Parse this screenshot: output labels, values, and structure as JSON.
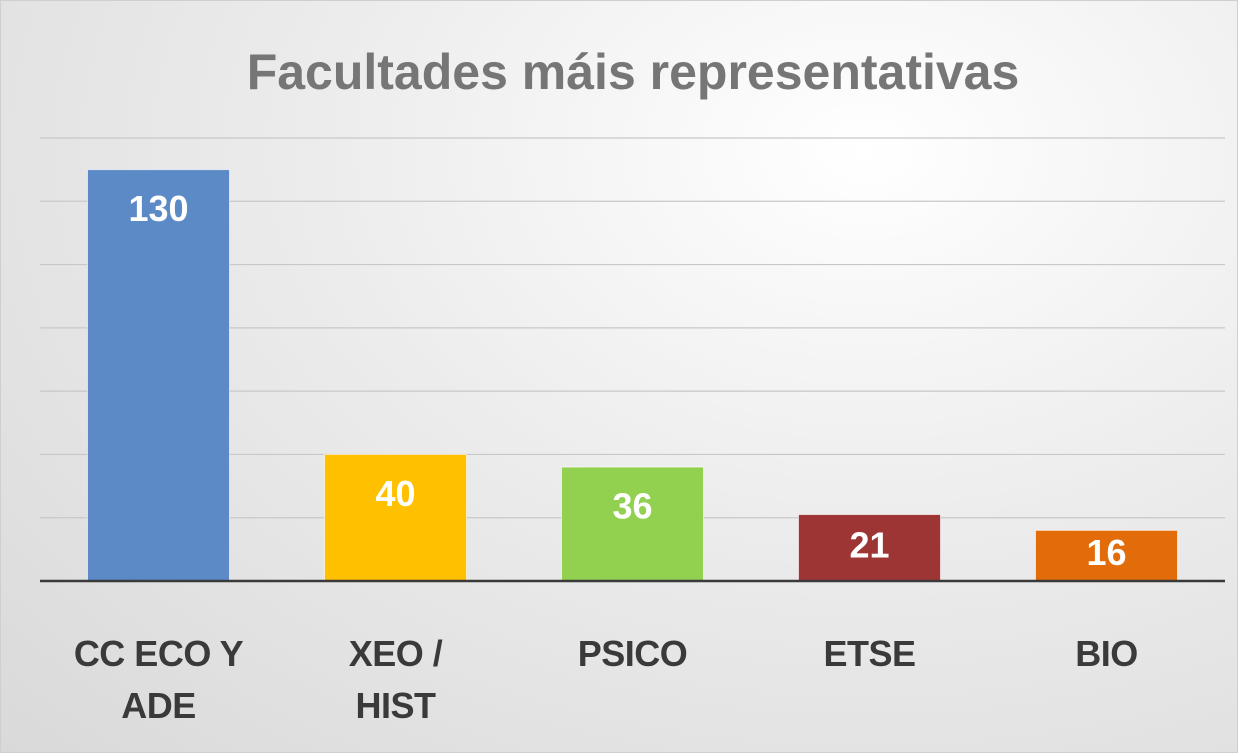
{
  "chart_data": {
    "type": "bar",
    "title": "Facultades máis representativas",
    "categories": [
      "CC ECO Y ADE",
      "XEO / HIST",
      "PSICO",
      "ETSE",
      "BIO"
    ],
    "values": [
      130,
      40,
      36,
      21,
      16
    ],
    "colors": [
      "#5b8ac6",
      "#ffc000",
      "#92d050",
      "#9e3535",
      "#e36c0a"
    ],
    "ylim": [
      0,
      140
    ],
    "yticks": [
      0,
      20,
      40,
      60,
      80,
      100,
      120,
      140
    ],
    "grid": true
  }
}
